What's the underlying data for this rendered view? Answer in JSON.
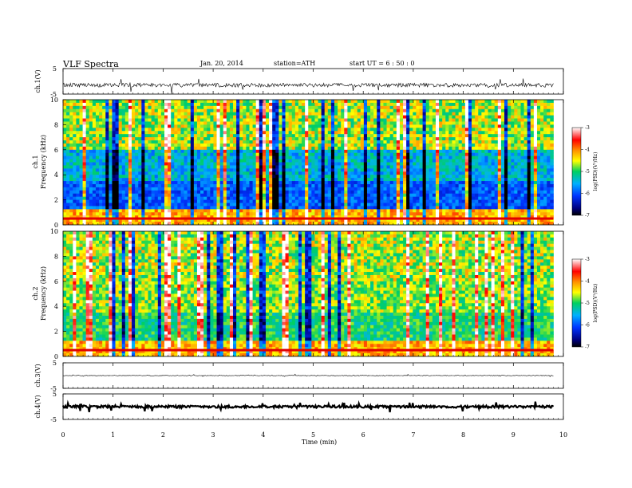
{
  "header": {
    "title": "VLF  Spectra",
    "date": "Jan. 20, 2014",
    "station": "station=ATH",
    "start": "start  UT  =   6  : 50 : 0"
  },
  "chart_data": [
    {
      "type": "line",
      "panel": "ch1-waveform",
      "ylabel": "ch.1(V)",
      "yticks": [
        "5",
        "-5"
      ],
      "ylim": [
        -5,
        5
      ],
      "xlim": [
        0,
        10
      ],
      "series": [
        {
          "x": [
            0,
            9.8
          ],
          "values": [
            -1.5,
            -1.5
          ]
        }
      ]
    },
    {
      "type": "heatmap",
      "panel": "ch1-spectrogram",
      "ylabel": "ch.1",
      "ylabel2": "Frequency  (kHz)",
      "ylim": [
        0,
        10
      ],
      "xlim": [
        0,
        10
      ],
      "data_xmax": 9.8,
      "yticks": [
        "0",
        "2",
        "4",
        "6",
        "8",
        "10"
      ],
      "colorbar": {
        "label": "log(PSD)(V²/Hz)",
        "ticks": [
          "-3",
          "-4",
          "-5",
          "-6",
          "-7"
        ],
        "range": [
          -7,
          -3
        ]
      }
    },
    {
      "type": "heatmap",
      "panel": "ch2-spectrogram",
      "ylabel": "ch.2",
      "ylabel2": "Frequency  (kHz)",
      "ylim": [
        0,
        10
      ],
      "xlim": [
        0,
        10
      ],
      "data_xmax": 9.8,
      "yticks": [
        "0",
        "2",
        "4",
        "6",
        "8",
        "10"
      ],
      "colorbar": {
        "label": "log(PSD)(V²/Hz)",
        "ticks": [
          "-3",
          "-4",
          "-5",
          "-6",
          "-7"
        ],
        "range": [
          -7,
          -3
        ]
      }
    },
    {
      "type": "line",
      "panel": "ch3-waveform",
      "ylabel": "ch.3(V)",
      "yticks": [
        "5",
        "-5"
      ],
      "ylim": [
        -5,
        5
      ],
      "xlim": [
        0,
        10
      ],
      "series": [
        {
          "x": [
            0,
            9.8
          ],
          "values": [
            0,
            0
          ]
        }
      ]
    },
    {
      "type": "line",
      "panel": "ch4-waveform",
      "ylabel": "ch.4(V)",
      "yticks": [
        "5",
        "-5"
      ],
      "ylim": [
        -5,
        5
      ],
      "xlim": [
        0,
        10
      ],
      "series": [
        {
          "x": [
            0,
            9.8
          ],
          "values": [
            0,
            0
          ]
        }
      ]
    }
  ],
  "xaxis": {
    "label": "Time  (min)",
    "ticks": [
      "0",
      "1",
      "2",
      "3",
      "4",
      "5",
      "6",
      "7",
      "8",
      "9",
      "10"
    ]
  },
  "colors": {
    "axis": "#000000",
    "background": "#ffffff"
  }
}
